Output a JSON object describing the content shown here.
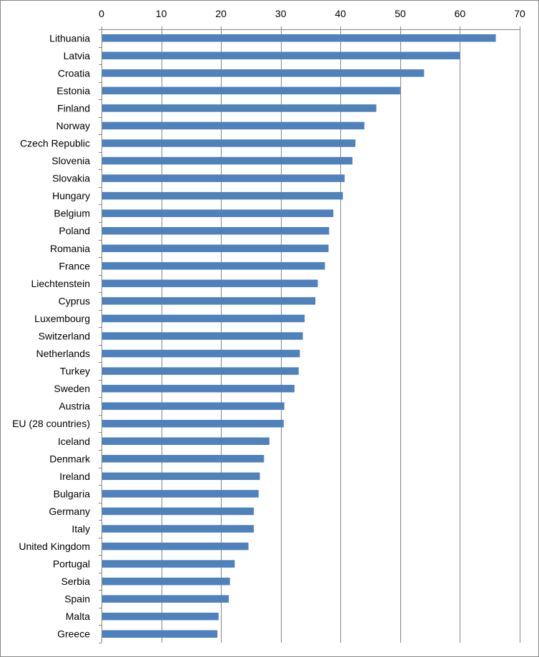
{
  "chart_data": {
    "type": "bar",
    "orientation": "horizontal",
    "title": "",
    "xlabel": "",
    "ylabel": "",
    "xlim": [
      0,
      70
    ],
    "xticks": [
      0,
      10,
      20,
      30,
      40,
      50,
      60,
      70
    ],
    "x_axis_position": "top",
    "grid": true,
    "legend": "none",
    "bar_color": "#4F81BD",
    "categories": [
      "Lithuania",
      "Latvia",
      "Croatia",
      "Estonia",
      "Finland",
      "Norway",
      "Czech Republic",
      "Slovenia",
      "Slovakia",
      "Hungary",
      "Belgium",
      "Poland",
      "Romania",
      "France",
      "Liechtenstein",
      "Cyprus",
      "Luxembourg",
      "Switzerland",
      "Netherlands",
      "Turkey",
      "Sweden",
      "Austria",
      "EU (28 countries)",
      "Iceland",
      "Denmark",
      "Ireland",
      "Bulgaria",
      "Germany",
      "Italy",
      "United Kingdom",
      "Portugal",
      "Serbia",
      "Spain",
      "Malta",
      "Greece"
    ],
    "values": [
      66.0,
      60.0,
      54.0,
      50.0,
      46.0,
      44.0,
      42.5,
      42.0,
      40.7,
      40.4,
      38.8,
      38.1,
      38.0,
      37.4,
      36.2,
      35.8,
      34.0,
      33.7,
      33.2,
      33.0,
      32.3,
      30.6,
      30.5,
      28.1,
      27.2,
      26.5,
      26.3,
      25.5,
      25.5,
      24.6,
      22.3,
      21.5,
      21.3,
      19.6,
      19.4
    ]
  }
}
